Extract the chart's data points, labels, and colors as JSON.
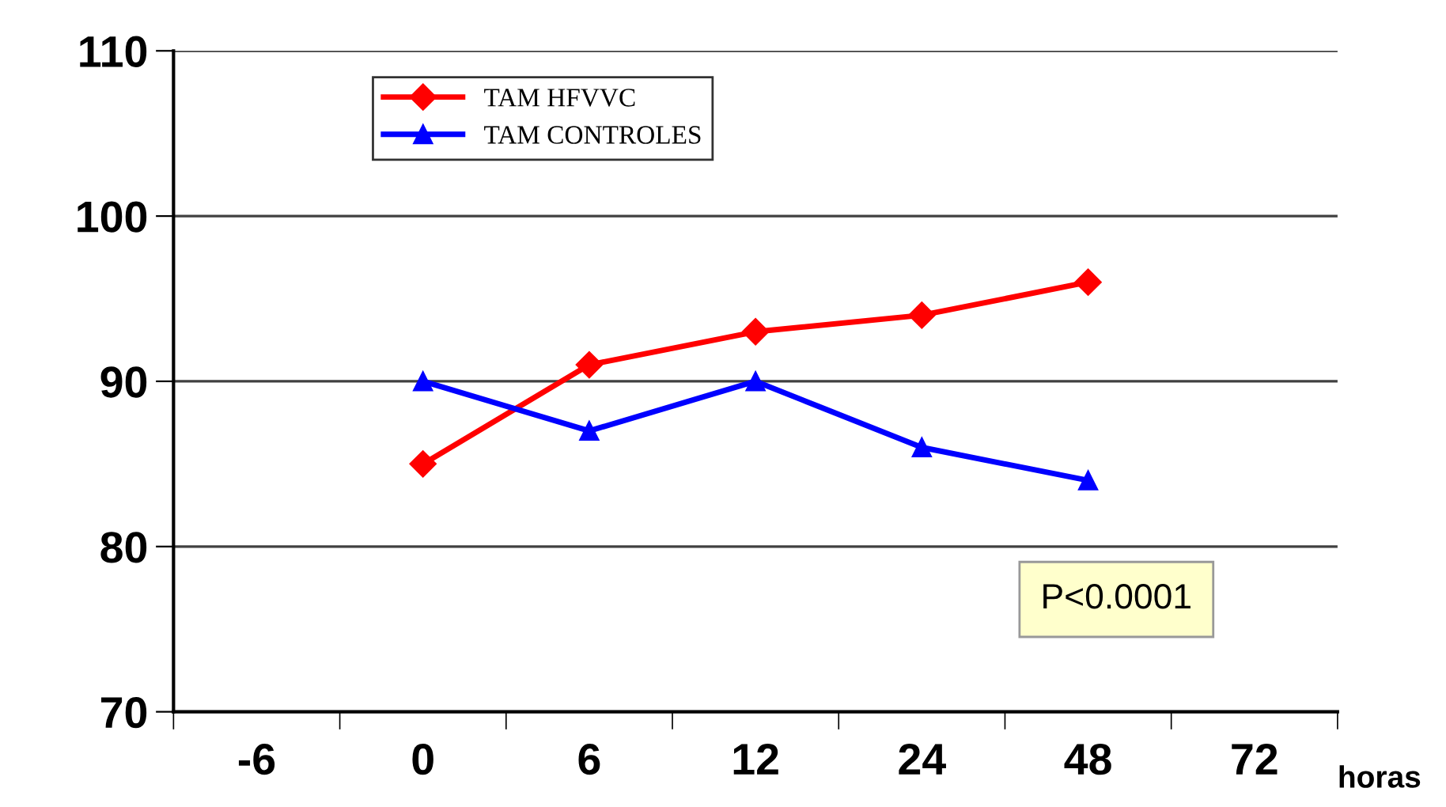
{
  "chart_data": {
    "type": "line",
    "xlabel": "horas",
    "categories": [
      "-6",
      "0",
      "6",
      "12",
      "24",
      "48",
      "72"
    ],
    "series": [
      {
        "name": "TAM HFVVC",
        "color": "#ff0000",
        "marker": "diamond",
        "values": [
          null,
          85,
          91,
          93,
          94,
          96,
          null
        ]
      },
      {
        "name": "TAM CONTROLES",
        "color": "#0000ff",
        "marker": "triangle",
        "values": [
          null,
          90,
          87,
          90,
          86,
          84,
          null
        ]
      }
    ],
    "ylim": [
      70,
      110
    ],
    "yticks": [
      70,
      80,
      90,
      100,
      110
    ],
    "grid": "y",
    "legend": "top left",
    "line_style": "solid",
    "annotations": [
      "P<0.0001"
    ]
  }
}
